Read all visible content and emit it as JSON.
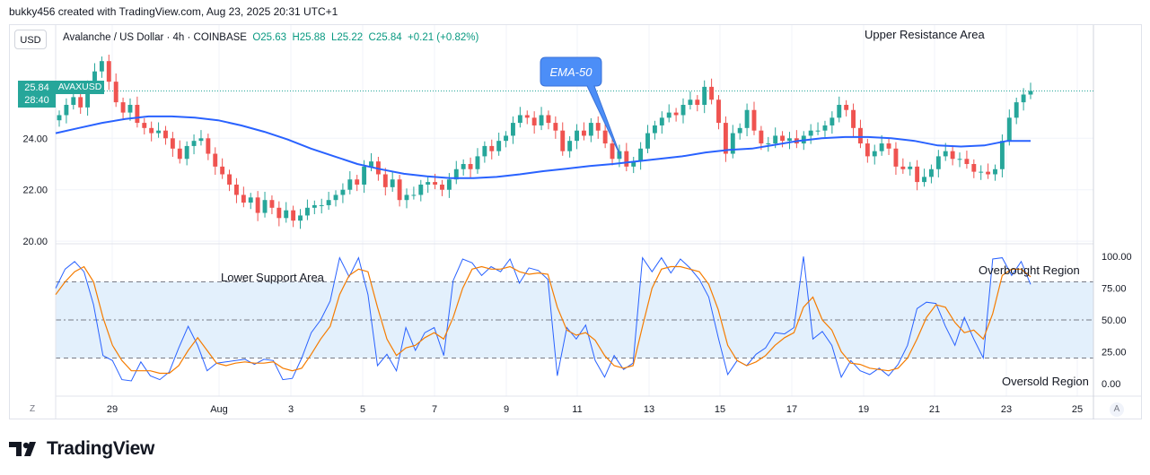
{
  "header": {
    "credit": "bukky456 created with TradingView.com, Aug 23, 2025 20:31 UTC+1"
  },
  "currency_button": "USD",
  "legend": {
    "symbol_text": "Avalanche / US Dollar · 4h · COINBASE",
    "open": "O25.63",
    "high": "H25.88",
    "low": "L25.22",
    "close": "C25.84",
    "change": "+0.21 (+0.82%)"
  },
  "price_tag": {
    "price": "25.84",
    "timer": "28:40",
    "symbol": "AVAXUSD"
  },
  "buttons": {
    "z": "Z",
    "a": "A"
  },
  "logo": {
    "text": "TradingView"
  },
  "colors": {
    "up": "#26a69a",
    "down": "#ef5350",
    "ema": "#2962ff",
    "k_line": "#2962ff",
    "d_line": "#f57c00",
    "callout": "#4c8ef7",
    "band_fill": "#e3f0fc"
  },
  "chart_data": [
    {
      "type": "candlestick",
      "title": "Avalanche / US Dollar · 4h · COINBASE",
      "ylim": [
        19.9,
        28.4
      ],
      "y_ticks": [
        "20.00",
        "22.00",
        "24.00"
      ],
      "x_ticks": [
        "29",
        "Aug",
        "3",
        "5",
        "7",
        "9",
        "11",
        "13",
        "15",
        "17",
        "19",
        "21",
        "23",
        "25"
      ],
      "last_price": 25.84,
      "grid": true,
      "series": [
        {
          "name": "EMA-50",
          "type": "line"
        }
      ],
      "annotations": [
        "EMA-50",
        "Upper Resistance Area"
      ],
      "closes": [
        24.9,
        25.3,
        25.6,
        25.2,
        26.0,
        26.6,
        27.0,
        26.2,
        25.4,
        25.0,
        25.3,
        24.6,
        24.4,
        24.2,
        24.3,
        24.0,
        23.6,
        23.2,
        23.7,
        23.9,
        24.0,
        23.4,
        22.9,
        22.6,
        22.2,
        21.8,
        21.5,
        21.7,
        21.1,
        21.6,
        21.3,
        20.9,
        21.2,
        20.8,
        21.0,
        21.3,
        21.4,
        21.4,
        21.6,
        21.8,
        22.0,
        22.4,
        22.2,
        22.9,
        23.1,
        22.6,
        22.1,
        22.4,
        21.6,
        21.8,
        21.8,
        22.2,
        22.3,
        22.2,
        22.0,
        22.4,
        22.8,
        23.0,
        22.8,
        23.3,
        23.7,
        23.5,
        23.9,
        24.1,
        24.6,
        24.9,
        24.8,
        24.5,
        24.9,
        24.6,
        24.3,
        23.5,
        23.9,
        24.3,
        24.1,
        24.6,
        24.3,
        23.8,
        23.2,
        23.5,
        22.9,
        23.1,
        23.6,
        24.2,
        24.5,
        24.8,
        25.0,
        24.9,
        25.3,
        25.5,
        25.3,
        26.0,
        25.5,
        24.6,
        23.4,
        24.2,
        24.4,
        25.1,
        24.3,
        23.8,
        23.8,
        24.1,
        23.9,
        24.0,
        23.8,
        24.1,
        24.3,
        24.3,
        24.5,
        24.8,
        25.3,
        25.1,
        24.4,
        23.8,
        23.3,
        23.5,
        23.8,
        23.6,
        22.9,
        22.8,
        22.9,
        22.3,
        22.5,
        22.8,
        23.3,
        23.5,
        23.2,
        23.2,
        23.0,
        22.7,
        22.7,
        22.6,
        22.8,
        23.9,
        24.8,
        25.4,
        25.7,
        25.84
      ],
      "ema50": [
        24.2,
        24.4,
        24.6,
        24.75,
        24.85,
        24.85,
        24.8,
        24.7,
        24.5,
        24.25,
        23.95,
        23.6,
        23.3,
        23.0,
        22.8,
        22.62,
        22.52,
        22.45,
        22.45,
        22.5,
        22.6,
        22.72,
        22.82,
        22.92,
        23.0,
        23.1,
        23.2,
        23.3,
        23.45,
        23.55,
        23.6,
        23.75,
        23.9,
        24.0,
        24.05,
        24.05,
        24.0,
        23.9,
        23.72,
        23.68,
        23.72,
        23.9,
        23.9
      ]
    },
    {
      "type": "line",
      "title": "",
      "ylim": [
        -10,
        110
      ],
      "y_ticks": [
        "100.00",
        "75.00",
        "50.00",
        "25.00",
        "0.00"
      ],
      "bands": {
        "upper": 80,
        "middle": 50,
        "lower": 20
      },
      "annotations": [
        "Lower Support Area",
        "Overbought Region",
        "Oversold Region"
      ],
      "series": [
        {
          "name": "",
          "values": [
            75,
            90,
            96,
            88,
            62,
            22,
            18,
            3,
            2,
            17,
            6,
            3,
            9,
            28,
            45,
            30,
            10,
            16,
            17,
            18,
            19,
            15,
            19,
            18,
            3,
            4,
            20,
            40,
            50,
            65,
            99,
            84,
            99,
            70,
            14,
            23,
            10,
            44,
            26,
            40,
            44,
            22,
            81,
            98,
            95,
            85,
            92,
            88,
            98,
            79,
            91,
            89,
            82,
            6,
            44,
            35,
            46,
            18,
            5,
            22,
            11,
            16,
            99,
            88,
            99,
            87,
            98,
            91,
            82,
            68,
            36,
            7,
            18,
            14,
            23,
            28,
            40,
            39,
            44,
            100,
            35,
            41,
            30,
            5,
            18,
            10,
            7,
            12,
            6,
            15,
            30,
            59,
            64,
            63,
            45,
            30,
            52,
            35,
            20,
            98,
            99,
            85,
            96,
            78
          ]
        },
        {
          "name": "",
          "values": [
            70,
            80,
            88,
            92,
            80,
            52,
            30,
            18,
            10,
            10,
            10,
            8,
            8,
            14,
            26,
            36,
            26,
            16,
            14,
            16,
            17,
            16,
            16,
            17,
            12,
            10,
            12,
            23,
            35,
            45,
            70,
            85,
            90,
            88,
            60,
            35,
            22,
            28,
            30,
            36,
            40,
            35,
            52,
            75,
            90,
            92,
            90,
            90,
            92,
            88,
            86,
            87,
            86,
            60,
            42,
            38,
            40,
            34,
            22,
            14,
            12,
            14,
            45,
            75,
            90,
            92,
            92,
            90,
            88,
            78,
            58,
            30,
            18,
            14,
            17,
            22,
            30,
            36,
            40,
            60,
            68,
            50,
            42,
            25,
            16,
            15,
            12,
            11,
            10,
            12,
            20,
            35,
            52,
            62,
            60,
            48,
            40,
            42,
            35,
            55,
            85,
            90,
            90,
            84
          ]
        }
      ]
    }
  ]
}
